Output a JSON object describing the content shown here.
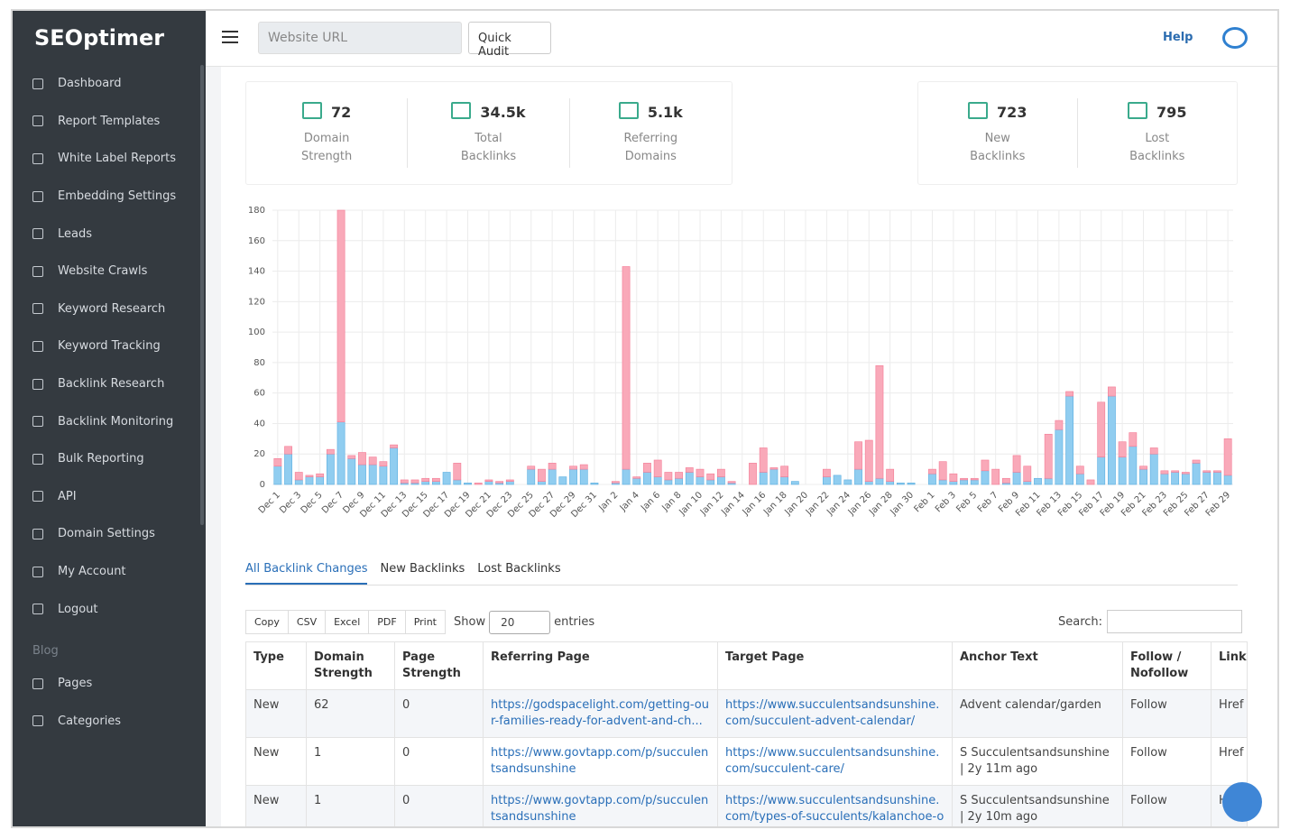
{
  "sidebar": {
    "logo": "SEOptimer",
    "nav": [
      "Dashboard",
      "Report Templates",
      "White Label Reports",
      "Embedding Settings",
      "Leads",
      "Website Crawls",
      "Keyword Research",
      "Keyword Tracking",
      "Backlink Research",
      "Backlink Monitoring",
      "Bulk Reporting",
      "API",
      "Domain Settings",
      "My Account",
      "Logout"
    ],
    "section": "Blog",
    "blog_nav": [
      "Pages",
      "Categories"
    ]
  },
  "topbar": {
    "url_placeholder": "Website URL",
    "audit_button": "Quick Audit",
    "help": "Help"
  },
  "stats": [
    {
      "value": "72",
      "label": "Domain Strength"
    },
    {
      "value": "34.5k",
      "label": "Total Backlinks"
    },
    {
      "value": "5.1k",
      "label": "Referring Domains"
    },
    {
      "value": "723",
      "label": "New Backlinks"
    },
    {
      "value": "795",
      "label": "Lost Backlinks"
    }
  ],
  "chart_data": {
    "type": "stacked_bar",
    "categories": [
      "Dec 1",
      null,
      "Dec 3",
      null,
      "Dec 5",
      null,
      "Dec 7",
      null,
      "Dec 9",
      null,
      "Dec 11",
      null,
      "Dec 13",
      null,
      "Dec 15",
      null,
      "Dec 17",
      null,
      "Dec 19",
      null,
      "Dec 21",
      null,
      "Dec 23",
      null,
      "Dec 25",
      null,
      "Dec 27",
      null,
      "Dec 29",
      null,
      "Dec 31",
      null,
      "Jan 2",
      null,
      "Jan 4",
      null,
      "Jan 6",
      null,
      "Jan 8",
      null,
      "Jan 10",
      null,
      "Jan 12",
      null,
      "Jan 14",
      null,
      "Jan 16",
      null,
      "Jan 18",
      null,
      "Jan 20",
      null,
      "Jan 22",
      null,
      "Jan 24",
      null,
      "Jan 26",
      null,
      "Jan 28",
      null,
      "Jan 30",
      null,
      "Feb 1",
      null,
      "Feb 3",
      null,
      "Feb 5",
      null,
      "Feb 7",
      null,
      "Feb 9",
      null,
      "Feb 11",
      null,
      "Feb 13",
      null,
      "Feb 15",
      null,
      "Feb 17",
      null,
      "Feb 19",
      null,
      "Feb 21",
      null,
      "Feb 23",
      null,
      "Feb 25",
      null,
      "Feb 27",
      null,
      "Feb 29"
    ],
    "series": [
      {
        "color": "#90cdf0",
        "values": [
          12,
          20,
          3,
          5,
          5,
          20,
          41,
          17,
          13,
          13,
          12,
          24,
          1,
          1,
          2,
          2,
          8,
          3,
          1,
          0,
          2,
          1,
          2,
          0,
          10,
          2,
          10,
          5,
          10,
          10,
          1,
          0,
          1,
          10,
          4,
          8,
          5,
          3,
          4,
          8,
          5,
          3,
          5,
          1,
          0,
          0,
          8,
          10,
          5,
          2,
          0,
          0,
          5,
          6,
          3,
          10,
          2,
          4,
          2,
          1,
          1,
          0,
          7,
          3,
          2,
          3,
          3,
          9,
          0,
          1,
          8,
          2,
          4,
          4,
          36,
          58,
          7,
          0,
          18,
          58,
          18,
          25,
          10,
          20,
          7,
          8,
          7,
          14,
          8,
          8,
          6
        ]
      },
      {
        "color": "#f9a9b9",
        "values": [
          5,
          5,
          5,
          1,
          2,
          3,
          139,
          2,
          8,
          5,
          3,
          2,
          2,
          2,
          2,
          2,
          0,
          11,
          0,
          1,
          1,
          1,
          1,
          0,
          2,
          8,
          4,
          0,
          2,
          3,
          0,
          0,
          1,
          133,
          1,
          6,
          11,
          5,
          4,
          3,
          5,
          4,
          5,
          1,
          0,
          14,
          16,
          1,
          7,
          0,
          0,
          0,
          5,
          0,
          0,
          18,
          27,
          74,
          8,
          0,
          0,
          0,
          3,
          12,
          5,
          1,
          1,
          7,
          10,
          3,
          11,
          10,
          0,
          29,
          6,
          3,
          5,
          3,
          36,
          6,
          10,
          9,
          2,
          4,
          2,
          1,
          1,
          2,
          1,
          1,
          24
        ]
      }
    ],
    "ylim": [
      0,
      180
    ],
    "yticks": [
      0,
      20,
      40,
      60,
      80,
      100,
      120,
      140,
      160,
      180
    ],
    "grid": true
  },
  "tabs": [
    "All Backlink Changes",
    "New Backlinks",
    "Lost Backlinks"
  ],
  "toolbar": {
    "buttons": [
      "Copy",
      "CSV",
      "Excel",
      "PDF",
      "Print"
    ],
    "show": "Show",
    "entries_option": "20",
    "entries": "entries",
    "search": "Search:"
  },
  "table": {
    "headers": [
      "Type",
      "Domain Strength",
      "Page Strength",
      "Referring Page",
      "Target Page",
      "Anchor Text",
      "Follow / Nofollow",
      "Link"
    ],
    "rows": [
      [
        "New",
        "62",
        "0",
        "https://godspacelight.com/getting-our-families-ready-for-advent-and-ch...",
        "https://www.succulentsandsunshine.com/succulent-advent-calendar/",
        "Advent calendar/garden",
        "Follow",
        "Href"
      ],
      [
        "New",
        "1",
        "0",
        "https://www.govtapp.com/p/succulentsandsunshine",
        "https://www.succulentsandsunshine.com/succulent-care/",
        "S Succulentsandsunshine | 2y 11m ago",
        "Follow",
        "Href"
      ],
      [
        "New",
        "1",
        "0",
        "https://www.govtapp.com/p/succulentsandsunshine",
        "https://www.succulentsandsunshine.com/types-of-succulents/kalanchoe-or...",
        "S Succulentsandsunshine | 2y 10m ago",
        "Follow",
        "Href"
      ]
    ]
  }
}
